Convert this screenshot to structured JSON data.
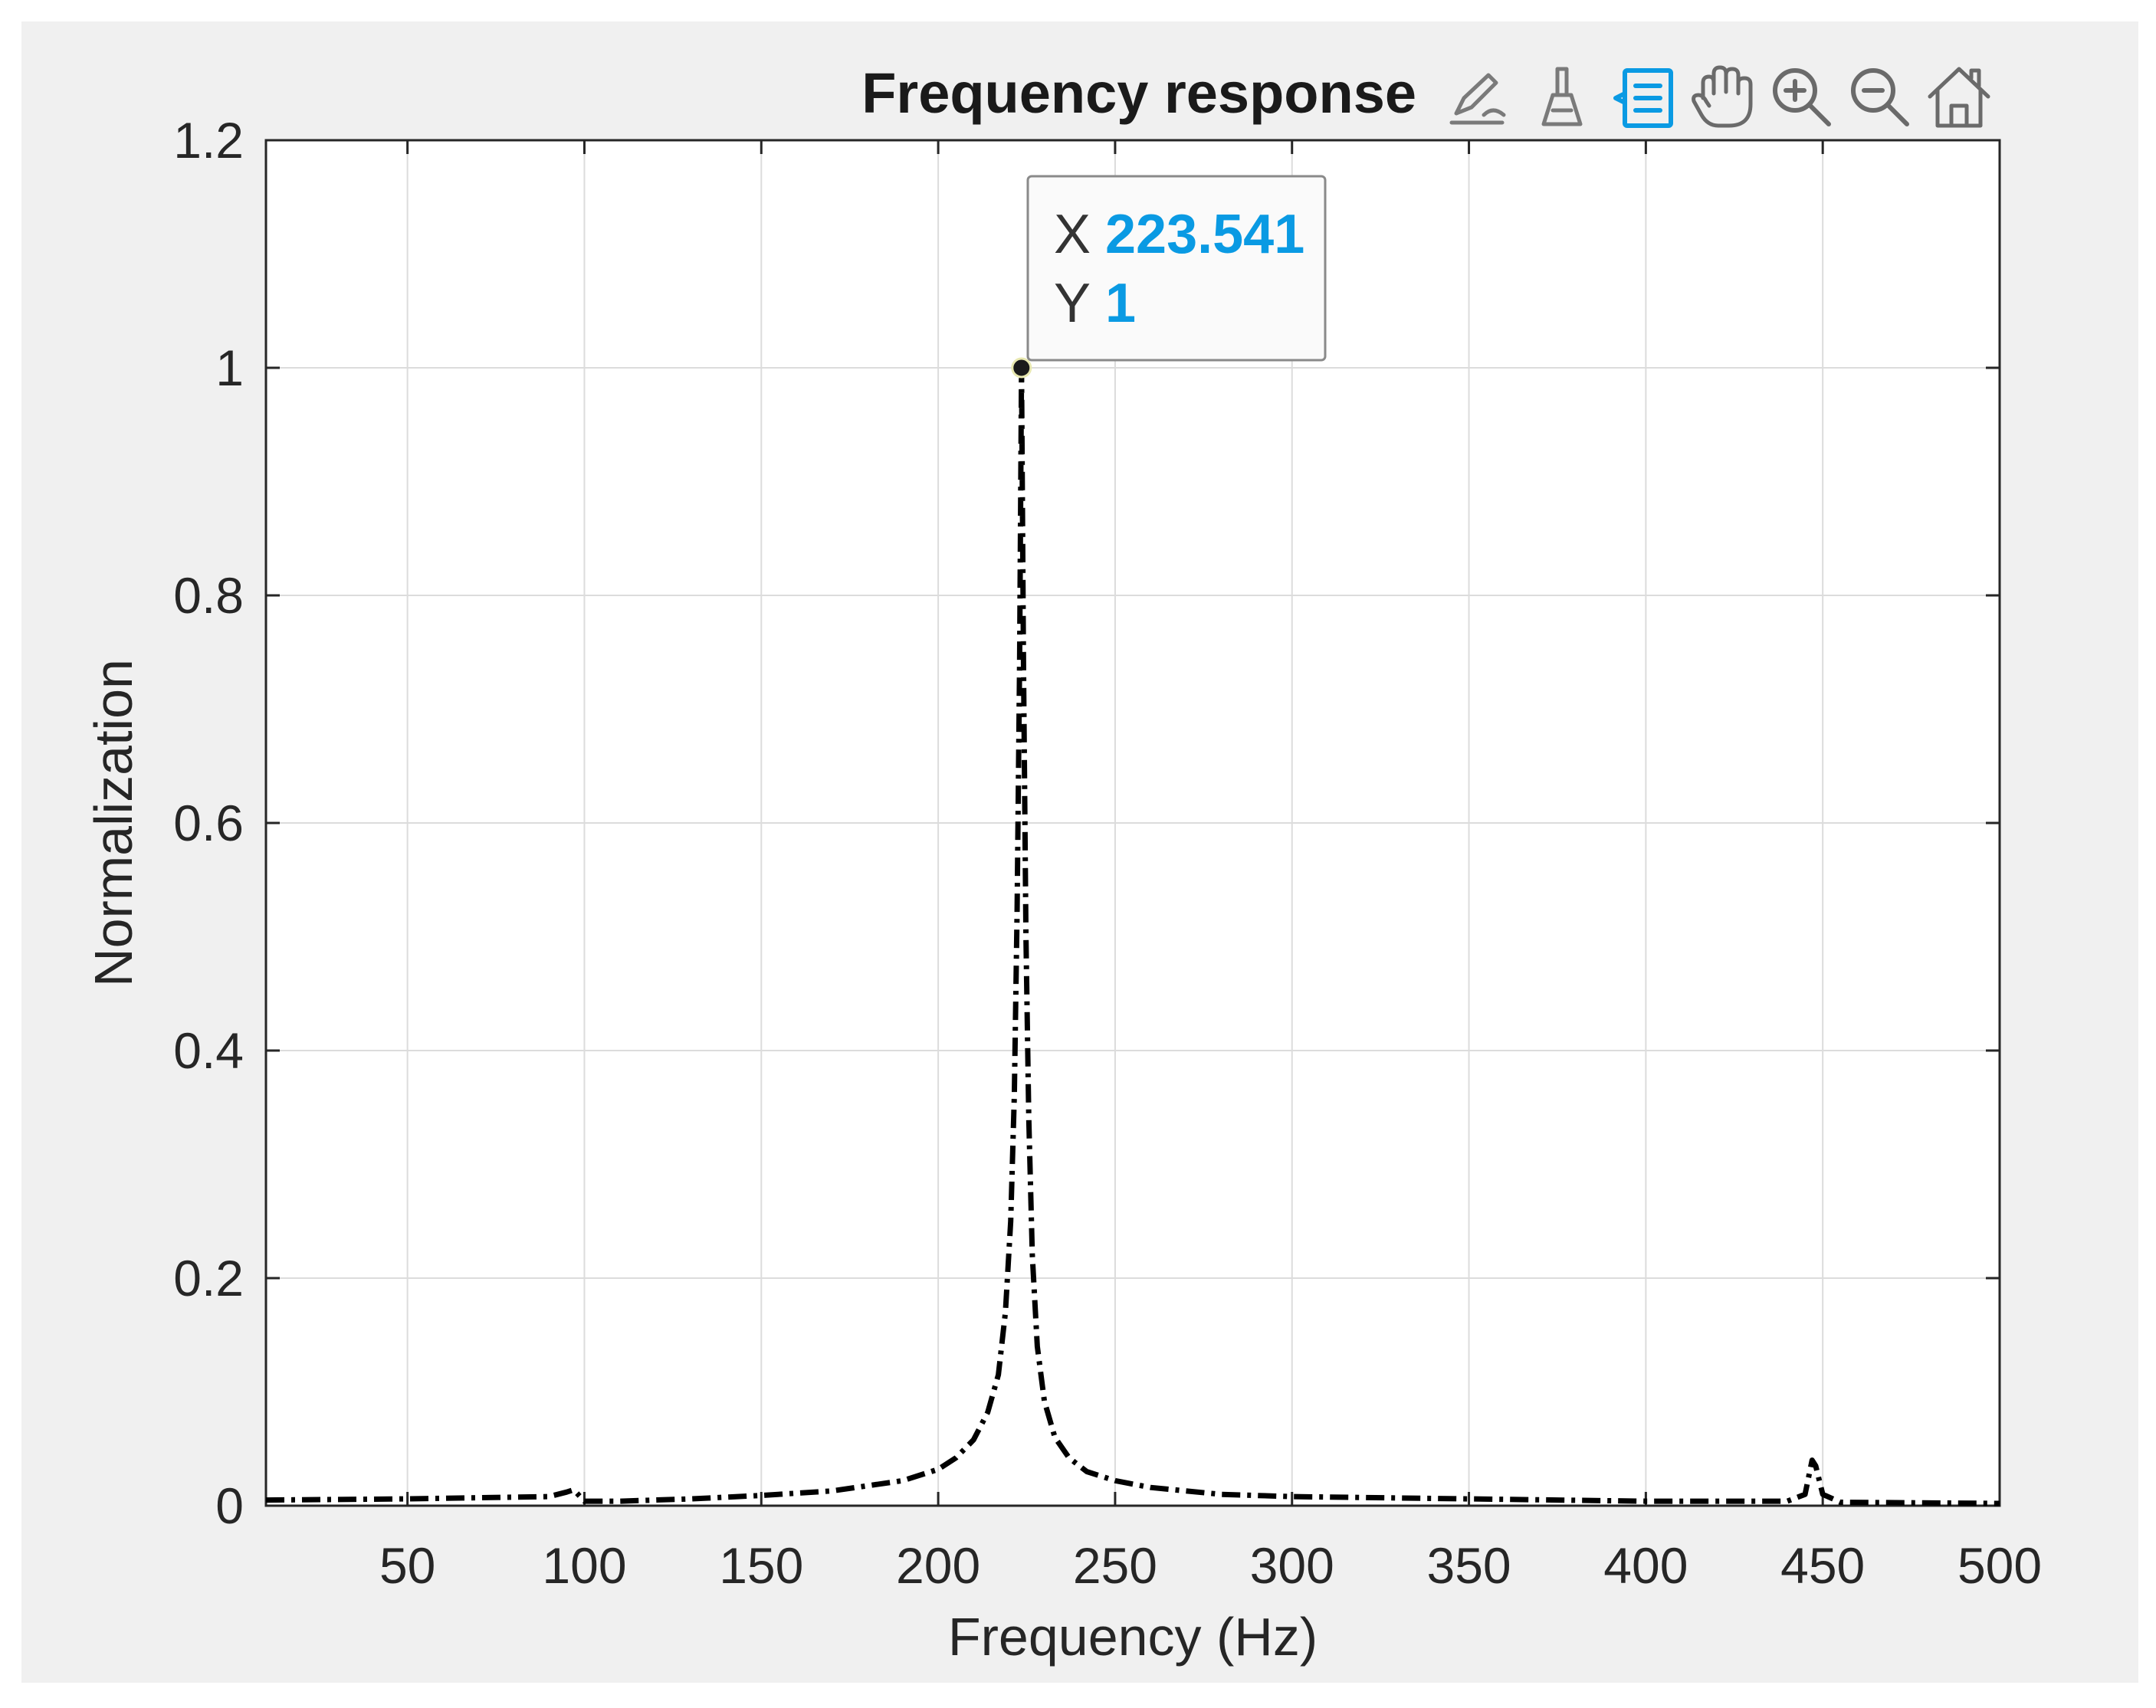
{
  "chart_data": {
    "type": "line",
    "title": "Frequency response",
    "xlabel": "Frequency (Hz)",
    "ylabel": "Normalization",
    "xlim": [
      10,
      500
    ],
    "ylim": [
      0,
      1.2
    ],
    "x_ticks": [
      "50",
      "100",
      "150",
      "200",
      "250",
      "300",
      "350",
      "400",
      "450",
      "500"
    ],
    "y_ticks": [
      "0",
      "0.2",
      "0.4",
      "0.6",
      "0.8",
      "1",
      "1.2"
    ],
    "grid": true,
    "series": [
      {
        "line_style": "dash-dot",
        "color": "#000000",
        "x": [
          10,
          50,
          90,
          95,
          97,
          100,
          110,
          130,
          150,
          170,
          190,
          200,
          205,
          210,
          214,
          217,
          219,
          220.5,
          221.5,
          222.3,
          223,
          223.541,
          224.1,
          224.8,
          225.6,
          226.6,
          228,
          230,
          233,
          237,
          242,
          250,
          260,
          280,
          300,
          350,
          400,
          440,
          445,
          447,
          448,
          450,
          455,
          500
        ],
        "y": [
          0.005,
          0.006,
          0.008,
          0.012,
          0.014,
          0.004,
          0.004,
          0.006,
          0.009,
          0.013,
          0.022,
          0.032,
          0.042,
          0.058,
          0.082,
          0.115,
          0.17,
          0.25,
          0.36,
          0.52,
          0.74,
          1.0,
          0.74,
          0.5,
          0.34,
          0.22,
          0.14,
          0.092,
          0.06,
          0.042,
          0.03,
          0.022,
          0.016,
          0.01,
          0.008,
          0.006,
          0.004,
          0.004,
          0.01,
          0.04,
          0.035,
          0.01,
          0.003,
          0.002
        ]
      }
    ],
    "datatip": {
      "x_key": "X",
      "x_value": "223.541",
      "y_key": "Y",
      "y_value": "1",
      "x": 223.541,
      "y": 1
    }
  },
  "toolbar": {
    "icons": [
      "edit-plot-icon",
      "brush-icon",
      "datatip-icon",
      "pan-hand-icon",
      "zoom-in-icon",
      "zoom-out-icon",
      "home-icon"
    ],
    "active_icon": "datatip-icon",
    "active_color": "#0a9ae3"
  },
  "colors": {
    "figure_background": "#f0f0f0",
    "axes_background": "#ffffff",
    "grid": "#dcdcdc",
    "line": "#000000",
    "datatip_value": "#0a9ae3"
  }
}
